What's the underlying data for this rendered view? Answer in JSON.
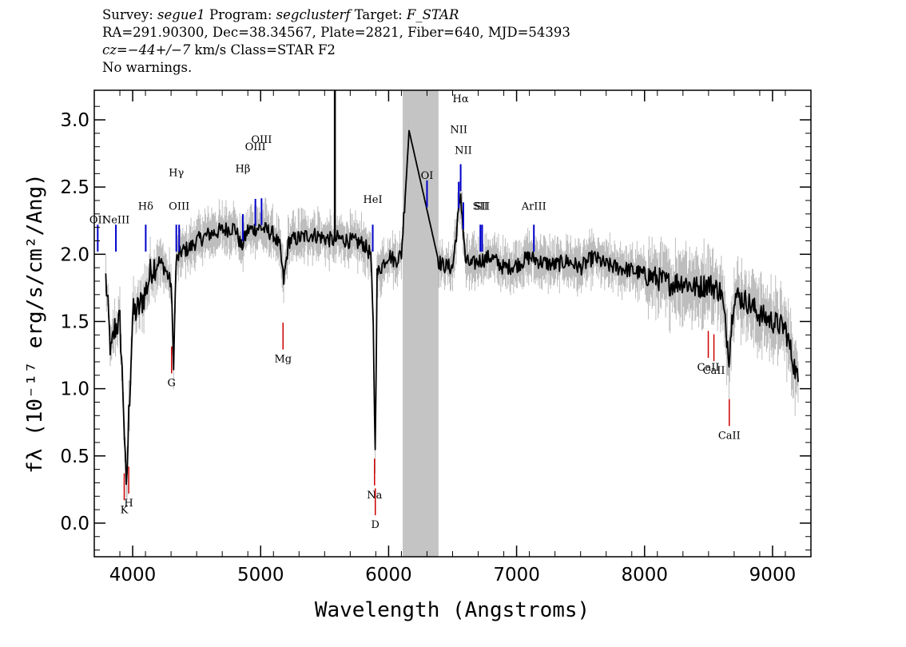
{
  "header": {
    "survey_label": "Survey:",
    "survey": "segue1",
    "program_label": "Program:",
    "program": "segclusterf",
    "target_label": "Target:",
    "target": "F_STAR",
    "line2": "RA=291.90300, Dec=38.34567, Plate=2821, Fiber=640, MJD=54393",
    "cz": "cz=−44+/−7",
    "line3_rest": " km/s Class=STAR F2",
    "line4": "No warnings."
  },
  "chart_data": {
    "type": "line",
    "title": "",
    "xlabel": "Wavelength (Angstroms)",
    "ylabel": "fλ (10⁻¹⁷ erg/s/cm²/Ang)",
    "xlim": [
      3700,
      9300
    ],
    "ylim": [
      -0.25,
      3.22
    ],
    "x_ticks": [
      4000,
      5000,
      6000,
      7000,
      8000,
      9000
    ],
    "x_tick_labels": [
      "4000",
      "5000",
      "6000",
      "7000",
      "8000",
      "9000"
    ],
    "y_ticks": [
      0.0,
      0.5,
      1.0,
      1.5,
      2.0,
      2.5,
      3.0
    ],
    "y_tick_labels": [
      "0.0",
      "0.5",
      "1.0",
      "1.5",
      "2.0",
      "2.5",
      "3.0"
    ],
    "masked_region": [
      6110,
      6390
    ],
    "colors": {
      "spectrum": "#000000",
      "error": "#bdbdbd",
      "emission": "#0000cc",
      "absorption": "#cc0000",
      "mask": "#c4c4c4"
    },
    "series": [
      {
        "role": "spectrum",
        "x": [
          3790,
          3830,
          3860,
          3900,
          3930,
          3950,
          3970,
          4000,
          4050,
          4100,
          4150,
          4200,
          4250,
          4300,
          4320,
          4340,
          4380,
          4450,
          4500,
          4600,
          4700,
          4800,
          4850,
          4900,
          5000,
          5100,
          5150,
          5180,
          5220,
          5300,
          5400,
          5500,
          5580,
          5600,
          5700,
          5800,
          5860,
          5880,
          5895,
          5910,
          5950,
          6000,
          6050,
          6100,
          6160,
          6390,
          6420,
          6500,
          6563,
          6600,
          6650,
          6700,
          6800,
          6900,
          7000,
          7100,
          7200,
          7300,
          7400,
          7500,
          7600,
          7700,
          7800,
          7900,
          8000,
          8100,
          8200,
          8300,
          8400,
          8500,
          8600,
          8660,
          8700,
          8800,
          8900,
          9000,
          9100,
          9200
        ],
        "values": [
          1.82,
          1.25,
          1.45,
          1.5,
          0.85,
          0.2,
          0.8,
          1.55,
          1.6,
          1.72,
          1.9,
          1.95,
          1.9,
          1.78,
          1.2,
          1.95,
          2.02,
          2.05,
          2.1,
          2.15,
          2.18,
          2.2,
          2.05,
          2.18,
          2.2,
          2.15,
          2.05,
          1.8,
          2.1,
          2.12,
          2.15,
          2.12,
          2.1,
          2.12,
          2.1,
          2.08,
          2.0,
          1.45,
          0.52,
          1.85,
          1.92,
          2.0,
          1.95,
          2.0,
          2.92,
          1.95,
          1.92,
          1.9,
          2.45,
          1.95,
          1.92,
          1.95,
          1.98,
          1.9,
          1.92,
          1.98,
          1.94,
          1.92,
          1.95,
          1.9,
          1.98,
          1.92,
          1.9,
          1.88,
          1.85,
          1.82,
          1.78,
          1.8,
          1.75,
          1.78,
          1.72,
          1.25,
          1.7,
          1.65,
          1.55,
          1.5,
          1.45,
          1.05
        ]
      }
    ],
    "emission_lines": [
      {
        "label": "OII",
        "x": 3727
      },
      {
        "label": "NeIII",
        "x": 3869
      },
      {
        "label": "Hδ",
        "x": 4102
      },
      {
        "label": "Hγ",
        "x": 4341
      },
      {
        "label": "OIII",
        "x": 4363
      },
      {
        "label": "Hβ",
        "x": 4861
      },
      {
        "label": "OIII",
        "x": 4959
      },
      {
        "label": "OIII",
        "x": 5007
      },
      {
        "label": "HeI",
        "x": 5876
      },
      {
        "label": "OI",
        "x": 6300
      },
      {
        "label": "NII",
        "x": 6548
      },
      {
        "label": "Hα",
        "x": 6563
      },
      {
        "label": "NII",
        "x": 6584
      },
      {
        "label": "SII",
        "x": 6717
      },
      {
        "label": "SII",
        "x": 6731
      },
      {
        "label": "ArIII",
        "x": 7135
      }
    ],
    "absorption_lines": [
      {
        "label": "K",
        "x": 3934
      },
      {
        "label": "H",
        "x": 3969
      },
      {
        "label": "G",
        "x": 4304
      },
      {
        "label": "Mg",
        "x": 5175
      },
      {
        "label": "Na",
        "x": 5890
      },
      {
        "label": "D",
        "x": 5896
      },
      {
        "label": "CaII",
        "x": 8498
      },
      {
        "label": "CaII",
        "x": 8542
      },
      {
        "label": "CaII",
        "x": 8662
      }
    ]
  }
}
